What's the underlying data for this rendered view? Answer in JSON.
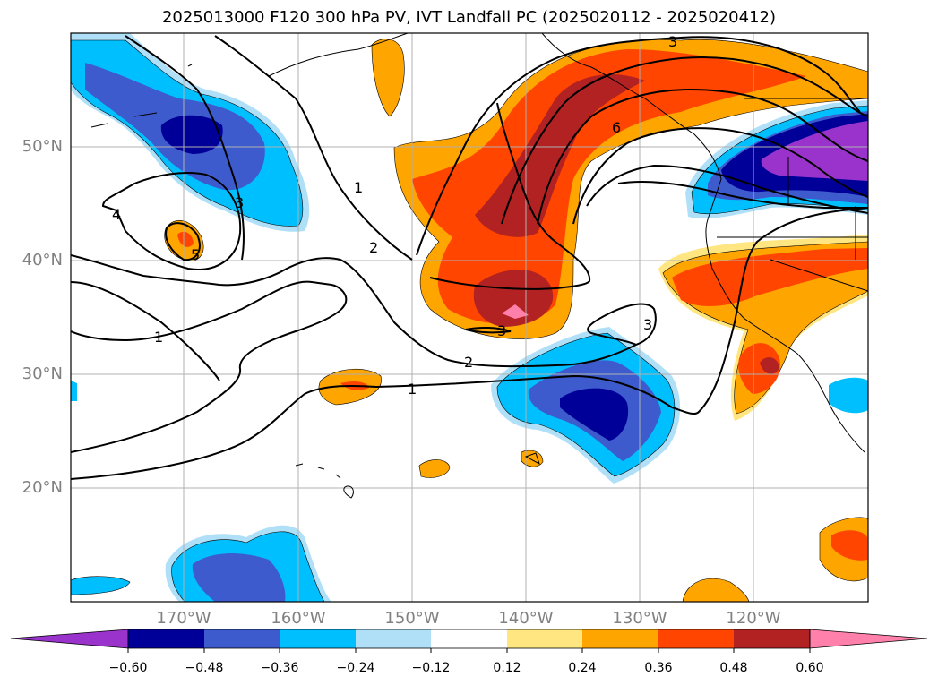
{
  "title": "2025013000 F120 300 hPa PV, IVT Landfall PC (2025020112 - 2025020412)",
  "latitude_labels": [
    "50°N",
    "40°N",
    "30°N",
    "20°N"
  ],
  "longitude_labels": [
    "170°W",
    "160°W",
    "150°W",
    "140°W",
    "130°W",
    "120°W"
  ],
  "contour_labels": [
    "1",
    "2",
    "3",
    "4",
    "5",
    "6",
    "1",
    "2",
    "1",
    "3",
    "3",
    "3"
  ],
  "colorbar": {
    "ticks": [
      "−0.60",
      "−0.48",
      "−0.36",
      "−0.24",
      "−0.12",
      "0.12",
      "0.24",
      "0.36",
      "0.48",
      "0.60"
    ],
    "colors": [
      "#9933cc",
      "#000099",
      "#3d5bcc",
      "#00bfff",
      "#b0e0f8",
      "#ffffff",
      "#ffe680",
      "#ffa500",
      "#ff4500",
      "#b22222",
      "#ff80aa"
    ]
  },
  "colors": {
    "pos_light": "#ffe680",
    "pos_orange": "#ffa500",
    "pos_red": "#ff4500",
    "pos_dark": "#b22222",
    "pos_pink": "#ff80aa",
    "neg_light": "#b0e0f8",
    "neg_cyan": "#00bfff",
    "neg_blue": "#3d5bcc",
    "neg_navy": "#000099",
    "neg_purple": "#9933cc",
    "grid": "#b0b0b0",
    "axis_label": "#808080"
  }
}
